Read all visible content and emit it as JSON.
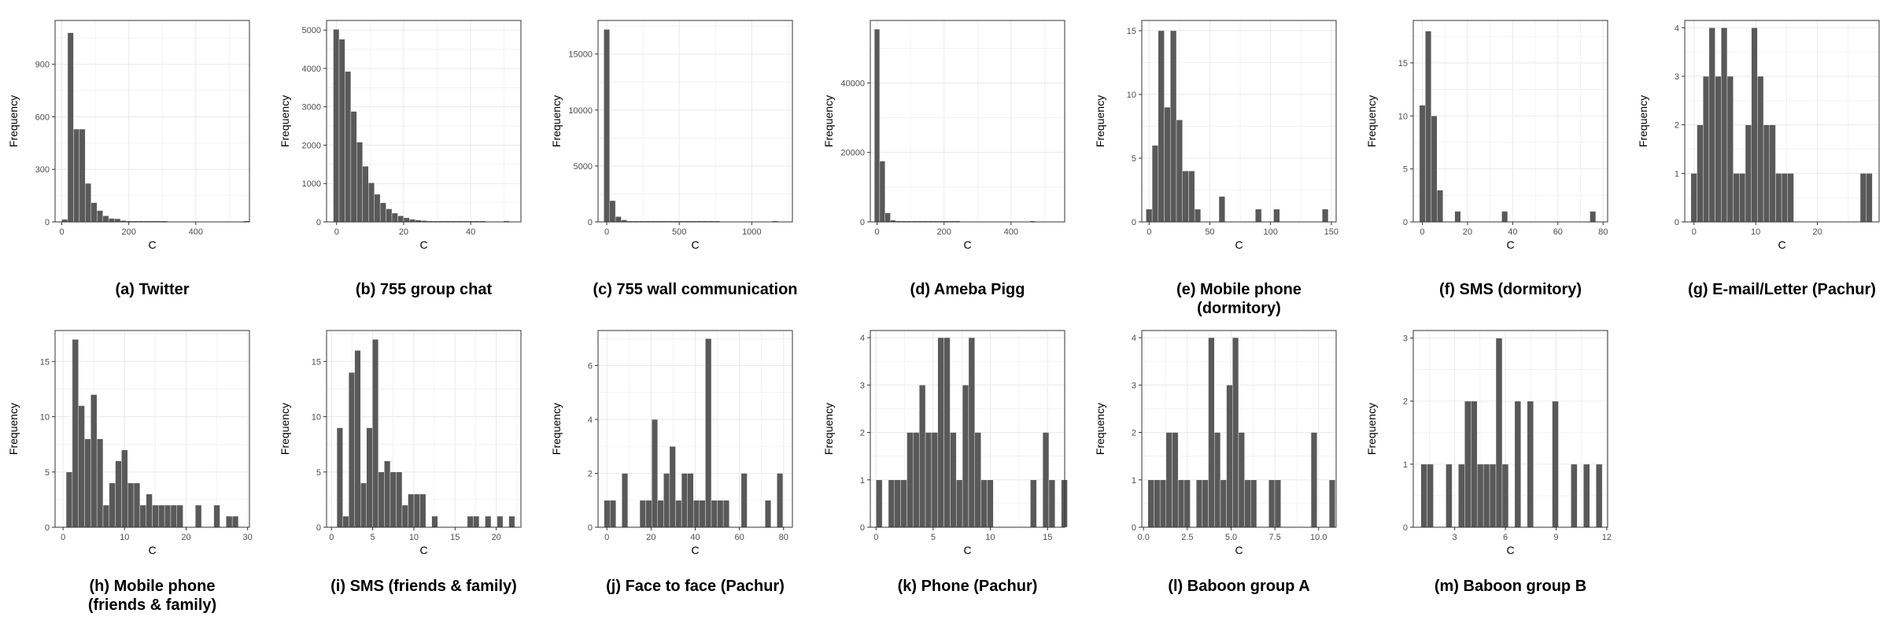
{
  "colors": {
    "bar": "#595959",
    "bar_edge": "#ffffff",
    "grid": "#ebebeb",
    "panel_border": "#333333",
    "text": "#4d4d4d"
  },
  "chart_data": [
    {
      "id": "a",
      "type": "histogram",
      "caption": "(a) Twitter",
      "xlabel": "C",
      "ylabel": "Frequency",
      "xlim": [
        -20,
        560
      ],
      "ylim": [
        0,
        1150
      ],
      "xticks": [
        0,
        200,
        400
      ],
      "yticks": [
        0,
        300,
        600,
        900
      ],
      "bin_start": 0,
      "bin_width": 17.5,
      "values": [
        15,
        1080,
        530,
        530,
        220,
        110,
        65,
        35,
        20,
        18,
        8,
        6,
        4,
        3,
        2,
        2,
        1,
        1,
        0,
        0,
        0,
        0,
        0,
        0,
        0,
        0,
        0,
        0,
        0,
        0,
        0,
        1
      ]
    },
    {
      "id": "b",
      "type": "histogram",
      "caption": "(b) 755 group chat",
      "xlabel": "C",
      "ylabel": "Frequency",
      "xlim": [
        -3,
        55
      ],
      "ylim": [
        0,
        5250
      ],
      "xticks": [
        0,
        20,
        40
      ],
      "yticks": [
        0,
        1000,
        2000,
        3000,
        4000,
        5000
      ],
      "bin_start": -1,
      "bin_width": 1.75,
      "values": [
        5020,
        4760,
        3920,
        2880,
        2080,
        1450,
        1020,
        720,
        500,
        340,
        230,
        160,
        110,
        70,
        50,
        35,
        25,
        18,
        12,
        8,
        5,
        3,
        2,
        1,
        1,
        1,
        0,
        0,
        0,
        1
      ]
    },
    {
      "id": "c",
      "type": "histogram",
      "caption": "(c) 755 wall communication",
      "xlabel": "C",
      "ylabel": "Frequency",
      "xlim": [
        -60,
        1280
      ],
      "ylim": [
        0,
        18000
      ],
      "xticks": [
        0,
        500,
        1000
      ],
      "yticks": [
        0,
        5000,
        10000,
        15000
      ],
      "bin_start": -20,
      "bin_width": 40,
      "values": [
        17200,
        1900,
        480,
        180,
        90,
        50,
        30,
        20,
        14,
        10,
        8,
        6,
        4,
        3,
        2,
        2,
        1,
        1,
        1,
        1,
        0,
        0,
        0,
        0,
        0,
        0,
        0,
        0,
        0,
        1
      ]
    },
    {
      "id": "d",
      "type": "histogram",
      "caption": "(d) Ameba Pigg",
      "xlabel": "C",
      "ylabel": "Frequency",
      "xlim": [
        -20,
        560
      ],
      "ylim": [
        0,
        58000
      ],
      "xticks": [
        0,
        200,
        400
      ],
      "yticks": [
        0,
        20000,
        40000
      ],
      "bin_start": -8,
      "bin_width": 16,
      "values": [
        55500,
        17500,
        2600,
        500,
        150,
        60,
        30,
        15,
        8,
        5,
        3,
        2,
        1,
        1,
        1,
        1,
        0,
        0,
        0,
        0,
        0,
        0,
        0,
        0,
        0,
        0,
        0,
        0,
        0,
        1
      ]
    },
    {
      "id": "e",
      "type": "histogram",
      "caption": "(e) Mobile phone\n(dormitory)",
      "xlabel": "C",
      "ylabel": "Frequency",
      "xlim": [
        -6,
        154
      ],
      "ylim": [
        0,
        15.8
      ],
      "xticks": [
        0,
        50,
        100,
        150
      ],
      "yticks": [
        0,
        5,
        10,
        15
      ],
      "bin_start": -2.5,
      "bin_width": 5,
      "values": [
        1,
        6,
        15,
        9,
        15,
        8,
        4,
        4,
        1,
        0,
        0,
        0,
        2,
        0,
        0,
        0,
        0,
        0,
        1,
        0,
        0,
        1,
        0,
        0,
        0,
        0,
        0,
        0,
        0,
        1
      ]
    },
    {
      "id": "f",
      "type": "histogram",
      "caption": "(f) SMS (dormitory)",
      "xlabel": "C",
      "ylabel": "Frequency",
      "xlim": [
        -4,
        82
      ],
      "ylim": [
        0,
        19
      ],
      "xticks": [
        0,
        20,
        40,
        60,
        80
      ],
      "yticks": [
        0,
        5,
        10,
        15
      ],
      "bin_start": -1.25,
      "bin_width": 2.6,
      "values": [
        11,
        18,
        10,
        3,
        0,
        0,
        1,
        0,
        0,
        0,
        0,
        0,
        0,
        0,
        1,
        0,
        0,
        0,
        0,
        0,
        0,
        0,
        0,
        0,
        0,
        0,
        0,
        0,
        0,
        1
      ]
    },
    {
      "id": "g",
      "type": "histogram",
      "caption": "(g) E-mail/Letter (Pachur)",
      "xlabel": "C",
      "ylabel": "Frequency",
      "xlim": [
        -1.5,
        30
      ],
      "ylim": [
        0,
        4.15
      ],
      "xticks": [
        0,
        10,
        20
      ],
      "yticks": [
        0,
        1,
        2,
        3,
        4
      ],
      "bin_start": -0.5,
      "bin_width": 0.98,
      "values": [
        1,
        2,
        3,
        4,
        3,
        4,
        3,
        1,
        1,
        2,
        4,
        3,
        2,
        2,
        1,
        1,
        1,
        0,
        0,
        0,
        0,
        0,
        0,
        0,
        0,
        0,
        0,
        0,
        1,
        1
      ]
    },
    {
      "id": "h",
      "type": "histogram",
      "caption": "(h) Mobile phone\n(friends & family)",
      "xlabel": "C",
      "ylabel": "Frequency",
      "xlim": [
        -1.3,
        30.3
      ],
      "ylim": [
        0,
        17.8
      ],
      "xticks": [
        0,
        10,
        20,
        30
      ],
      "yticks": [
        0,
        5,
        10,
        15
      ],
      "bin_start": 0.5,
      "bin_width": 1,
      "values": [
        5,
        17,
        11,
        8,
        12,
        8,
        2,
        4,
        6,
        7,
        4,
        4,
        2,
        3,
        2,
        2,
        2,
        2,
        2,
        0,
        0,
        2,
        0,
        0,
        2,
        0,
        1,
        1,
        0
      ]
    },
    {
      "id": "i",
      "type": "histogram",
      "caption": "(i) SMS (friends & family)",
      "xlabel": "C",
      "ylabel": "Frequency",
      "xlim": [
        -0.6,
        23
      ],
      "ylim": [
        0,
        17.8
      ],
      "xticks": [
        0,
        5,
        10,
        15,
        20
      ],
      "yticks": [
        0,
        5,
        10,
        15
      ],
      "bin_start": 0.65,
      "bin_width": 0.72,
      "values": [
        9,
        1,
        14,
        16,
        4,
        9,
        17,
        5,
        6,
        5,
        5,
        2,
        3,
        3,
        3,
        0,
        1,
        0,
        0,
        0,
        0,
        0,
        1,
        1,
        0,
        1,
        0,
        1,
        0,
        1
      ]
    },
    {
      "id": "j",
      "type": "histogram",
      "caption": "(j) Face to face (Pachur)",
      "xlabel": "C",
      "ylabel": "Frequency",
      "xlim": [
        -4,
        84
      ],
      "ylim": [
        0,
        7.3
      ],
      "xticks": [
        0,
        20,
        40,
        60,
        80
      ],
      "yticks": [
        0,
        2,
        4,
        6
      ],
      "bin_start": -1.3,
      "bin_width": 2.7,
      "values": [
        1,
        1,
        0,
        2,
        0,
        0,
        1,
        1,
        4,
        1,
        2,
        3,
        1,
        2,
        2,
        1,
        1,
        7,
        1,
        1,
        1,
        0,
        0,
        2,
        0,
        0,
        0,
        1,
        0,
        2
      ]
    },
    {
      "id": "k",
      "type": "histogram",
      "caption": "(k) Phone (Pachur)",
      "xlabel": "C",
      "ylabel": "Frequency",
      "xlim": [
        -0.5,
        16.5
      ],
      "ylim": [
        0,
        4.15
      ],
      "xticks": [
        0,
        5,
        10,
        15
      ],
      "yticks": [
        0,
        1,
        2,
        3,
        4
      ],
      "bin_start": 0,
      "bin_width": 0.54,
      "values": [
        1,
        0,
        1,
        1,
        1,
        2,
        2,
        3,
        2,
        2,
        4,
        4,
        2,
        1,
        3,
        4,
        2,
        1,
        1,
        0,
        0,
        0,
        0,
        0,
        0,
        1,
        0,
        2,
        1,
        0,
        1
      ]
    },
    {
      "id": "l",
      "type": "histogram",
      "caption": "(l) Baboon group A",
      "xlabel": "C",
      "ylabel": "Frequency",
      "xlim": [
        -0.1,
        11
      ],
      "ylim": [
        0,
        4.15
      ],
      "xticks": [
        0.0,
        2.5,
        5.0,
        7.5,
        10.0
      ],
      "yticks": [
        0,
        1,
        2,
        3,
        4
      ],
      "tick_decimals": 1,
      "bin_start": 0.25,
      "bin_width": 0.345,
      "values": [
        1,
        1,
        1,
        2,
        2,
        1,
        1,
        0,
        1,
        1,
        4,
        2,
        1,
        3,
        4,
        2,
        1,
        1,
        0,
        0,
        1,
        1,
        0,
        0,
        0,
        0,
        0,
        2,
        0,
        0,
        1
      ]
    },
    {
      "id": "m",
      "type": "histogram",
      "caption": "(m) Baboon group B",
      "xlabel": "C",
      "ylabel": "Frequency",
      "xlim": [
        0.55,
        12.05
      ],
      "ylim": [
        0,
        3.12
      ],
      "xticks": [
        3,
        6,
        9,
        12
      ],
      "yticks": [
        0,
        1,
        2,
        3
      ],
      "bin_start": 1,
      "bin_width": 0.37,
      "values": [
        1,
        1,
        0,
        0,
        1,
        0,
        1,
        2,
        2,
        1,
        1,
        1,
        3,
        1,
        0,
        2,
        0,
        2,
        0,
        0,
        0,
        2,
        0,
        0,
        1,
        0,
        1,
        0,
        1,
        0
      ]
    }
  ]
}
